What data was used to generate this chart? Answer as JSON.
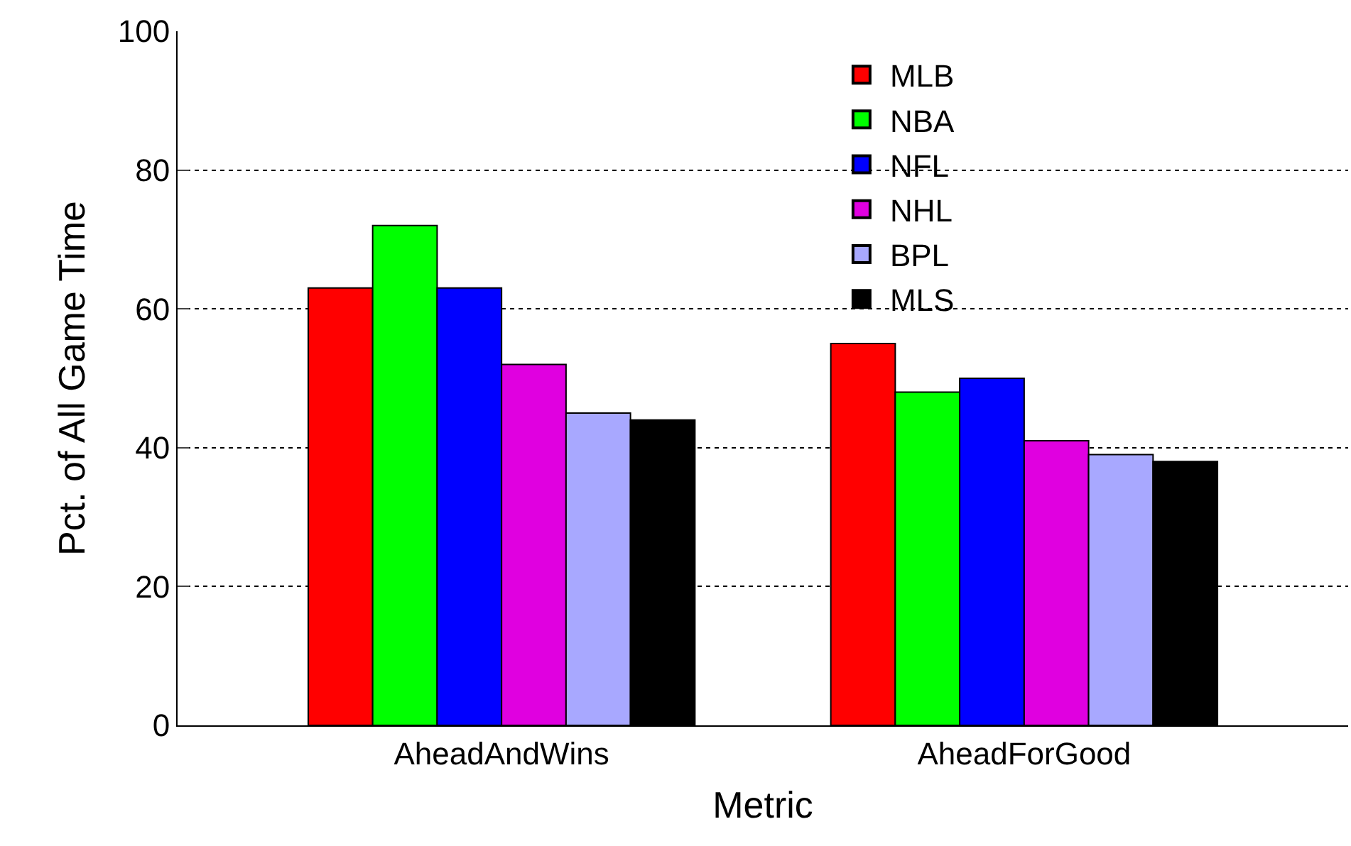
{
  "chart_data": {
    "type": "bar",
    "xlabel": "Metric",
    "ylabel": "Pct. of All Game Time",
    "categories": [
      "AheadAndWins",
      "AheadForGood"
    ],
    "series": [
      {
        "name": "MLB",
        "color": "#ff0000",
        "values": [
          63,
          55
        ]
      },
      {
        "name": "NBA",
        "color": "#00ff00",
        "values": [
          72,
          48
        ]
      },
      {
        "name": "NFL",
        "color": "#0000ff",
        "values": [
          63,
          50
        ]
      },
      {
        "name": "NHL",
        "color": "#e000e0",
        "values": [
          52,
          41
        ]
      },
      {
        "name": "BPL",
        "color": "#a8a8ff",
        "values": [
          45,
          39
        ]
      },
      {
        "name": "MLS",
        "color": "#000000",
        "values": [
          44,
          38
        ]
      }
    ],
    "ylim": [
      0,
      100
    ],
    "yticks": [
      0,
      20,
      40,
      60,
      80,
      100
    ],
    "grid": "y",
    "legend": "top"
  }
}
